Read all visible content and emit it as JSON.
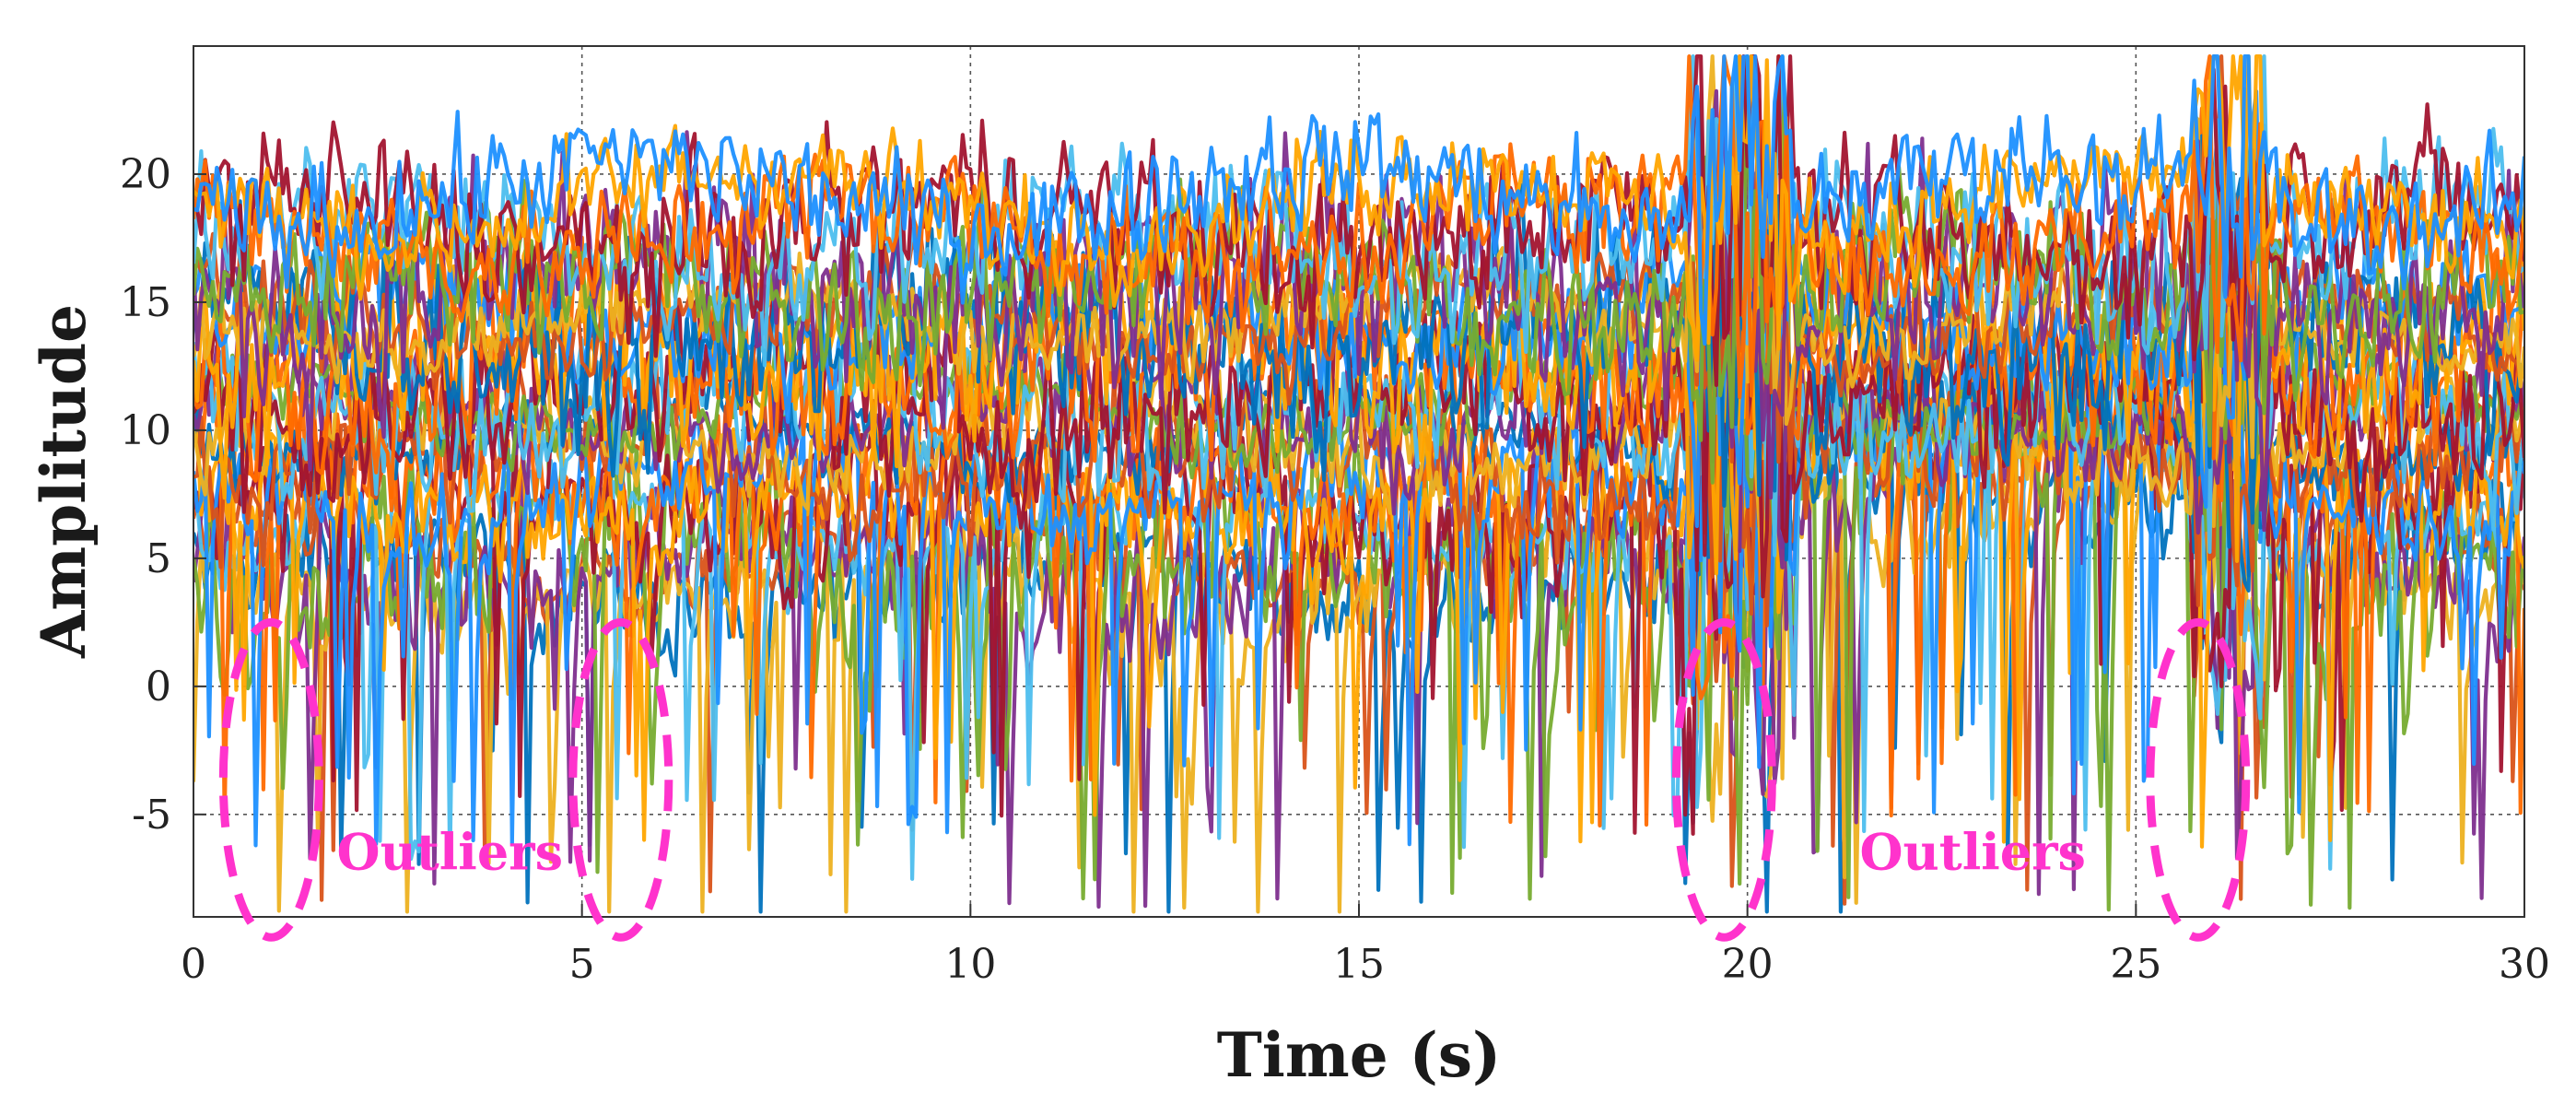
{
  "chart_data": {
    "type": "line",
    "title": "",
    "xlabel": "Time (s)",
    "ylabel": "Amplitude",
    "xlim": [
      0,
      30
    ],
    "ylim": [
      -9,
      25
    ],
    "xticks": [
      0,
      5,
      10,
      15,
      20,
      25,
      30
    ],
    "yticks": [
      -5,
      0,
      5,
      10,
      15,
      20
    ],
    "xtick_labels": [
      "0",
      "5",
      "10",
      "15",
      "20",
      "25",
      "30"
    ],
    "ytick_labels": [
      "-5",
      "0",
      "5",
      "10",
      "15",
      "20"
    ],
    "grid": true,
    "legend": "none",
    "series_palette": [
      "#0072BD",
      "#D95319",
      "#EDB120",
      "#7E2F8E",
      "#77AC30",
      "#4DBEEE",
      "#A2142F",
      "#FF6A00",
      "#FFA500",
      "#1E90FF"
    ],
    "series_count": 30,
    "series_description": "Many overlapping noisy amplitude traces sampled 0-30 s, base levels between about 4 and 19, with bursts near t=19.5-20.5 s and t=25.8-26.5 s",
    "annotations": [
      {
        "text": "Outliers",
        "x": 3.3,
        "y": -6.5,
        "color": "#FF33CC"
      },
      {
        "text": "Outliers",
        "x": 22.9,
        "y": -6.5,
        "color": "#FF33CC"
      }
    ],
    "outlier_regions": [
      {
        "x_center": 1.0,
        "y_range": [
          -9.8,
          2.5
        ]
      },
      {
        "x_center": 5.5,
        "y_range": [
          -9.8,
          2.5
        ]
      },
      {
        "x_center": 19.7,
        "y_range": [
          -9.8,
          2.5
        ]
      },
      {
        "x_center": 25.8,
        "y_range": [
          -9.8,
          2.5
        ]
      }
    ],
    "annotation_color": "#FF33CC"
  }
}
